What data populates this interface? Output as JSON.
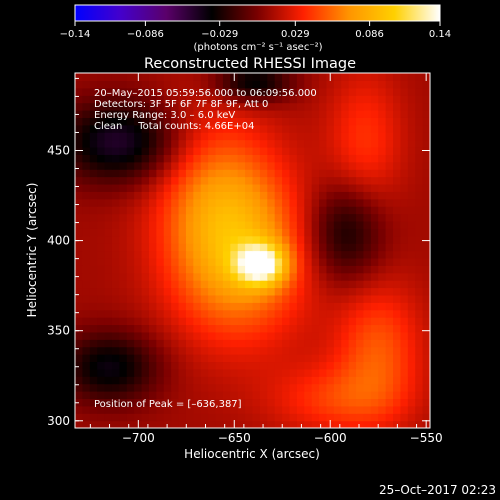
{
  "colorbar": {
    "ticks": [
      "−0.14",
      "−0.086",
      "−0.029",
      "0.029",
      "0.086",
      "0.14"
    ],
    "tick_values": [
      -0.14,
      -0.086,
      -0.029,
      0.029,
      0.086,
      0.14
    ],
    "unit": "(photons cm⁻² s⁻¹ asec⁻²)",
    "colormap": [
      "#0000ff",
      "#4400cc",
      "#5a006a",
      "#000000",
      "#7a0000",
      "#ff2000",
      "#ff9400",
      "#ffd000",
      "#ffffff"
    ]
  },
  "plot": {
    "title": "Reconstructed RHESSI Image",
    "info_lines": [
      "20–May–2015 05:59:56.000 to 06:09:56.000",
      "Detectors: 3F 5F 6F 7F 8F 9F, Att 0",
      "Energy Range: 3.0 – 6.0 keV",
      "Clean     Total counts: 4.66E+04"
    ],
    "peak_label": "Position of Peak = [–636,387]",
    "timestamp": "25–Oct–2017 02:23"
  },
  "chart_data": {
    "type": "heatmap",
    "title": "Reconstructed RHESSI Image",
    "xlabel": "Heliocentric X (arcsec)",
    "ylabel": "Heliocentric Y (arcsec)",
    "xlim": [
      -733,
      -548
    ],
    "ylim": [
      296,
      493
    ],
    "xticks": [
      -700,
      -650,
      -600,
      -550
    ],
    "yticks": [
      300,
      350,
      400,
      450
    ],
    "xtick_labels": [
      "−700",
      "−650",
      "−600",
      "−550"
    ],
    "ytick_labels": [
      "300",
      "350",
      "400",
      "450"
    ],
    "zlim": [
      -0.14,
      0.14
    ],
    "peak": {
      "x": -636,
      "y": 387,
      "value": 0.14
    },
    "components": [
      {
        "x": -636,
        "y": 387,
        "sx": 9,
        "sy": 8,
        "amp": 0.09
      },
      {
        "x": -648,
        "y": 392,
        "sx": 25,
        "sy": 33,
        "amp": 0.07
      },
      {
        "x": -660,
        "y": 430,
        "sx": 22,
        "sy": 32,
        "amp": 0.035
      },
      {
        "x": -575,
        "y": 340,
        "sx": 16,
        "sy": 26,
        "amp": 0.04
      },
      {
        "x": -598,
        "y": 312,
        "sx": 24,
        "sy": 14,
        "amp": 0.03
      },
      {
        "x": -582,
        "y": 455,
        "sx": 14,
        "sy": 28,
        "amp": 0.03
      },
      {
        "x": -710,
        "y": 455,
        "sx": 22,
        "sy": 16,
        "amp": -0.06
      },
      {
        "x": -715,
        "y": 330,
        "sx": 18,
        "sy": 14,
        "amp": -0.05
      },
      {
        "x": -592,
        "y": 405,
        "sx": 14,
        "sy": 20,
        "amp": -0.045
      },
      {
        "x": -640,
        "y": 488,
        "sx": 14,
        "sy": 8,
        "amp": -0.05
      }
    ]
  }
}
